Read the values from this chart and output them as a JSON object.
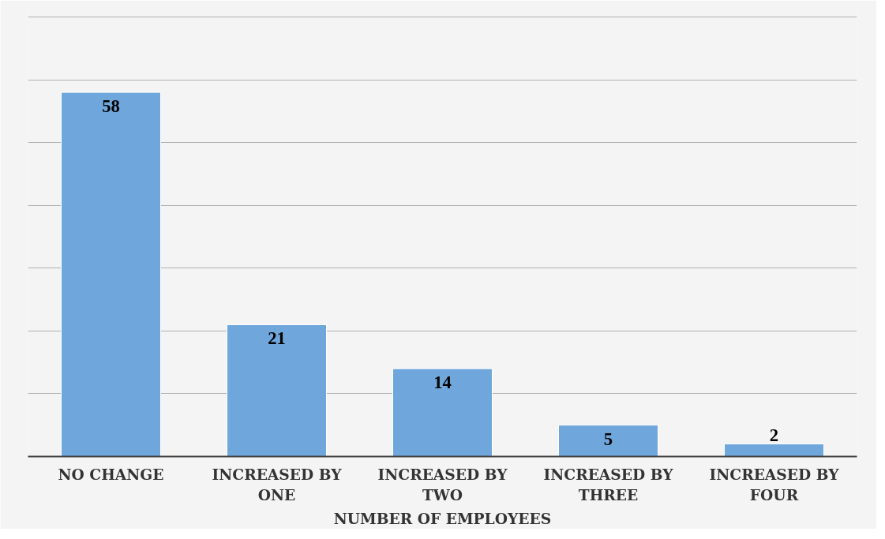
{
  "chart_data": {
    "type": "bar",
    "xlabel": "NUMBER OF EMPLOYEES",
    "categories": [
      "NO CHANGE",
      "INCREASED BY ONE",
      "INCREASED BY TWO",
      "INCREASED BY THREE",
      "INCREASED BY FOUR"
    ],
    "values": [
      58,
      21,
      14,
      5,
      2
    ],
    "color": "#6fa7dc",
    "data_labels": true,
    "ylim": [
      0,
      70
    ],
    "yticks": [
      {
        "value": 0,
        "label": null
      },
      {
        "value": 10,
        "label": null
      },
      {
        "value": 20,
        "label": null
      },
      {
        "value": 30,
        "label": null
      },
      {
        "value": 40,
        "label": null
      },
      {
        "value": 50,
        "label": null
      },
      {
        "value": 60,
        "label": null
      },
      {
        "value": 70,
        "label": null
      }
    ],
    "tick_labels": "x",
    "grid": "y"
  }
}
